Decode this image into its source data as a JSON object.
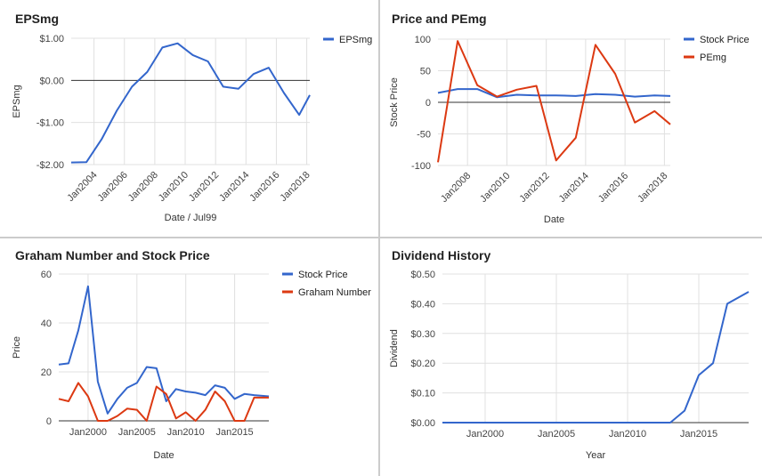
{
  "chart_data": [
    {
      "type": "line",
      "title": "EPSmg",
      "xlabel": "Date / Jul99",
      "ylabel": "EPSmg",
      "ylim": [
        -2,
        1
      ],
      "yticks": [
        1,
        0,
        -1,
        -2
      ],
      "ytick_labels": [
        "$1.00",
        "$0.00",
        "-$1.00",
        "-$2.00"
      ],
      "xlim": [
        2002.5,
        2018.2
      ],
      "xticks": [
        2004,
        2006,
        2008,
        2010,
        2012,
        2014,
        2016,
        2018
      ],
      "xtick_labels": [
        "Jan2004",
        "Jan2006",
        "Jan2008",
        "Jan2010",
        "Jan2012",
        "Jan2014",
        "Jan2016",
        "Jan2018"
      ],
      "grid": true,
      "zero_line": true,
      "legend_position": "top-right",
      "series": [
        {
          "name": "EPSmg",
          "color": "#3366cc",
          "x": [
            2002.5,
            2003.5,
            2004.5,
            2005.5,
            2006.5,
            2007.5,
            2008.5,
            2009.5,
            2010.5,
            2011.5,
            2012.5,
            2013.5,
            2014.5,
            2015.5,
            2016.5,
            2017.5,
            2018.2
          ],
          "y": [
            -1.95,
            -1.94,
            -1.4,
            -0.72,
            -0.15,
            0.2,
            0.78,
            0.88,
            0.6,
            0.45,
            -0.15,
            -0.2,
            0.15,
            0.3,
            -0.3,
            -0.82,
            -0.35
          ]
        }
      ]
    },
    {
      "type": "line",
      "title": "Price and PEmg",
      "xlabel": "Date",
      "ylabel": "Stock Price",
      "ylim": [
        -100,
        100
      ],
      "yticks": [
        100,
        50,
        0,
        -50,
        -100
      ],
      "ytick_labels": [
        "100",
        "50",
        "0",
        "-50",
        "-100"
      ],
      "xlim": [
        2006.5,
        2018.3
      ],
      "xticks": [
        2008,
        2010,
        2012,
        2014,
        2016,
        2018
      ],
      "xtick_labels": [
        "Jan2008",
        "Jan2010",
        "Jan2012",
        "Jan2014",
        "Jan2016",
        "Jan2018"
      ],
      "grid": true,
      "zero_line": true,
      "legend_position": "top-right",
      "series": [
        {
          "name": "Stock Price",
          "color": "#3366cc",
          "x": [
            2006.5,
            2007.5,
            2008.5,
            2009.5,
            2010.5,
            2011.5,
            2012.5,
            2013.5,
            2014.5,
            2015.5,
            2016.5,
            2017.5,
            2018.3
          ],
          "y": [
            15,
            21,
            21,
            8,
            12,
            11,
            11,
            10,
            13,
            12,
            9,
            11,
            10
          ]
        },
        {
          "name": "PEmg",
          "color": "#dc3912",
          "x": [
            2006.5,
            2007.5,
            2008.5,
            2009.5,
            2010.5,
            2011.5,
            2012.5,
            2013.5,
            2014.5,
            2015.5,
            2016.5,
            2017.5,
            2018.3
          ],
          "y": [
            -95,
            97,
            27,
            9,
            20,
            26,
            -92,
            -56,
            91,
            45,
            -32,
            -14,
            -35
          ]
        }
      ]
    },
    {
      "type": "line",
      "title": "Graham Number and Stock Price",
      "xlabel": "Date",
      "ylabel": "Price",
      "ylim": [
        0,
        60
      ],
      "yticks": [
        60,
        40,
        20,
        0
      ],
      "ytick_labels": [
        "60",
        "40",
        "20",
        "0"
      ],
      "xlim": [
        1997,
        2018.5
      ],
      "xticks": [
        2000,
        2005,
        2010,
        2015
      ],
      "xtick_labels": [
        "Jan2000",
        "Jan2005",
        "Jan2010",
        "Jan2015"
      ],
      "grid": true,
      "legend_position": "top-right",
      "series": [
        {
          "name": "Stock Price",
          "color": "#3366cc",
          "x": [
            1997,
            1998,
            1999,
            2000,
            2001,
            2002,
            2003,
            2004,
            2005,
            2006,
            2007,
            2008,
            2009,
            2010,
            2011,
            2012,
            2013,
            2014,
            2015,
            2016,
            2017,
            2018.5
          ],
          "y": [
            23,
            23.5,
            37,
            55,
            16,
            3,
            9,
            13.5,
            15.5,
            22,
            21.5,
            8,
            13,
            12,
            11.5,
            10.5,
            14.5,
            13.5,
            9,
            11,
            10.5,
            10
          ]
        },
        {
          "name": "Graham Number",
          "color": "#dc3912",
          "x": [
            1997,
            1998,
            1999,
            2000,
            2001,
            2002,
            2003,
            2004,
            2005,
            2006,
            2007,
            2008,
            2009,
            2010,
            2011,
            2012,
            2013,
            2014,
            2015,
            2016,
            2017,
            2018.5
          ],
          "y": [
            9,
            8,
            15.5,
            10,
            0,
            0,
            2,
            5,
            4.5,
            0,
            14,
            11,
            1,
            3.5,
            0,
            4.5,
            12,
            8,
            0,
            0,
            9.5,
            9.5
          ]
        }
      ]
    },
    {
      "type": "line",
      "title": "Dividend History",
      "xlabel": "Year",
      "ylabel": "Dividend",
      "ylim": [
        0,
        0.5
      ],
      "yticks": [
        0.5,
        0.4,
        0.3,
        0.2,
        0.1,
        0
      ],
      "ytick_labels": [
        "$0.50",
        "$0.40",
        "$0.30",
        "$0.20",
        "$0.10",
        "$0.00"
      ],
      "xlim": [
        1997,
        2018.5
      ],
      "xticks": [
        2000,
        2005,
        2010,
        2015
      ],
      "xtick_labels": [
        "Jan2000",
        "Jan2005",
        "Jan2010",
        "Jan2015"
      ],
      "grid": true,
      "legend_position": "none",
      "series": [
        {
          "color": "#3366cc",
          "x": [
            1997,
            2013,
            2014,
            2015,
            2016,
            2017,
            2018.5
          ],
          "y": [
            0,
            0,
            0.04,
            0.16,
            0.2,
            0.4,
            0.44
          ]
        }
      ]
    }
  ]
}
